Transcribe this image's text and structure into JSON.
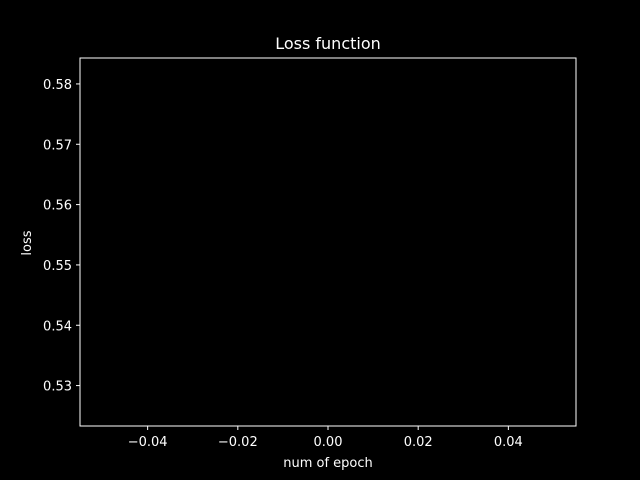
{
  "chart_data": {
    "type": "line",
    "title": "Loss function",
    "xlabel": "num of epoch",
    "ylabel": "loss",
    "xlim": [
      -0.055,
      0.055
    ],
    "ylim": [
      0.5233,
      0.5843
    ],
    "x_ticks": [
      -0.04,
      -0.02,
      0.0,
      0.02,
      0.04
    ],
    "x_tick_labels": [
      "−0.04",
      "−0.02",
      "0.00",
      "0.02",
      "0.04"
    ],
    "y_ticks": [
      0.53,
      0.54,
      0.55,
      0.56,
      0.57,
      0.58
    ],
    "y_tick_labels": [
      "0.53",
      "0.54",
      "0.55",
      "0.56",
      "0.57",
      "0.58"
    ],
    "series": [
      {
        "x": [],
        "y": []
      }
    ],
    "grid": false,
    "colors": {
      "background": "#000000",
      "foreground": "#ffffff",
      "line": "#1f77b4"
    }
  }
}
